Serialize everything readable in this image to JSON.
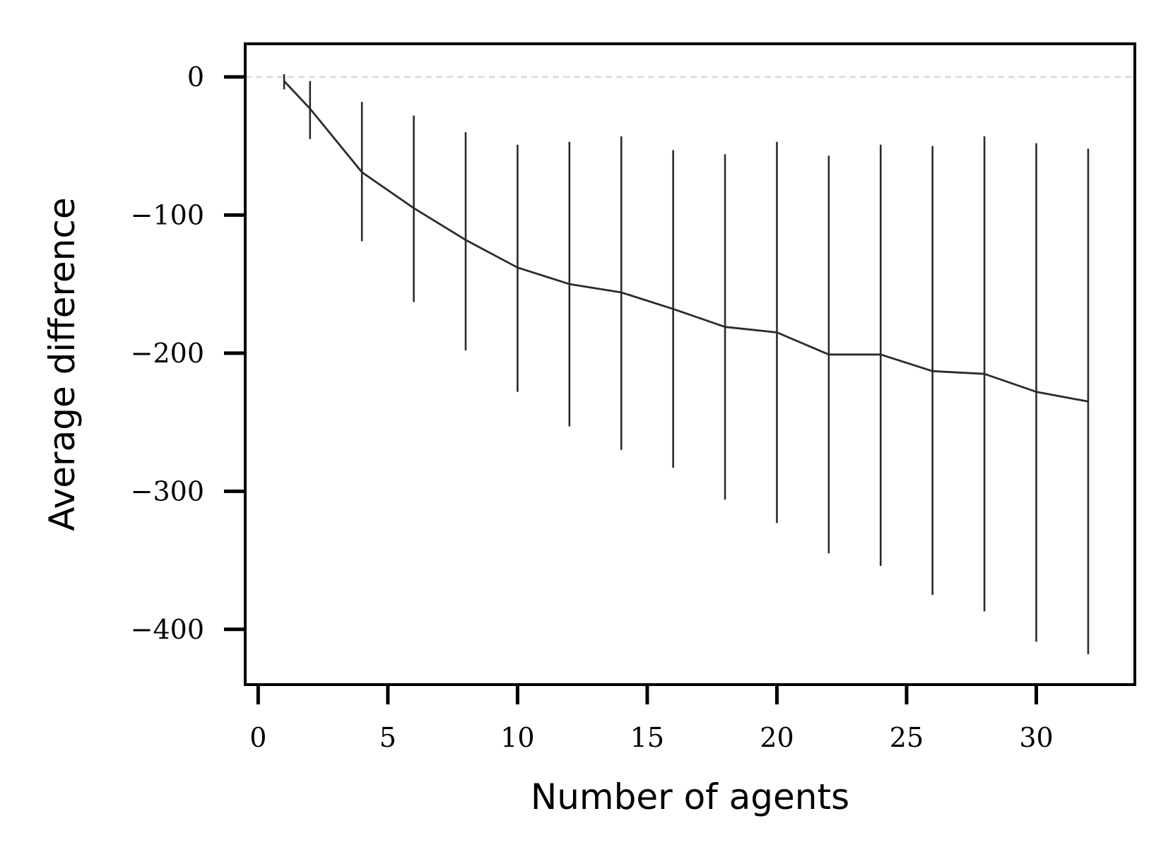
{
  "chart_data": {
    "type": "line",
    "title": "",
    "xlabel": "Number of agents",
    "ylabel": "Average difference",
    "xlim": [
      -0.5,
      33.8
    ],
    "ylim": [
      -440,
      24
    ],
    "xticks": [
      0,
      5,
      10,
      15,
      20,
      25,
      30
    ],
    "xtick_labels": [
      "0",
      "5",
      "10",
      "15",
      "20",
      "25",
      "30"
    ],
    "yticks": [
      0,
      -100,
      -200,
      -300,
      -400
    ],
    "ytick_labels": [
      "0",
      "−100",
      "−200",
      "−300",
      "−400"
    ],
    "grid": false,
    "legend": "none",
    "reference_line": {
      "y": 0,
      "style": "dashed",
      "color": "#d9d9d9"
    },
    "line_color": "#2b2b2b",
    "series": [
      {
        "x": [
          1,
          2,
          4,
          6,
          8,
          10,
          12,
          14,
          16,
          18,
          20,
          22,
          24,
          26,
          28,
          30,
          32
        ],
        "y": [
          -3,
          -23,
          -69,
          -95,
          -118,
          -138,
          -150,
          -156,
          -168,
          -181,
          -185,
          -201,
          -201,
          -213,
          -215,
          -228,
          -235
        ],
        "upper": [
          2,
          -3,
          -18,
          -28,
          -40,
          -49,
          -47,
          -43,
          -53,
          -56,
          -47,
          -57,
          -49,
          -50,
          -43,
          -48,
          -52
        ],
        "lower": [
          -9,
          -45,
          -119,
          -163,
          -198,
          -228,
          -253,
          -270,
          -283,
          -306,
          -323,
          -345,
          -354,
          -375,
          -387,
          -409,
          -418
        ]
      }
    ]
  }
}
